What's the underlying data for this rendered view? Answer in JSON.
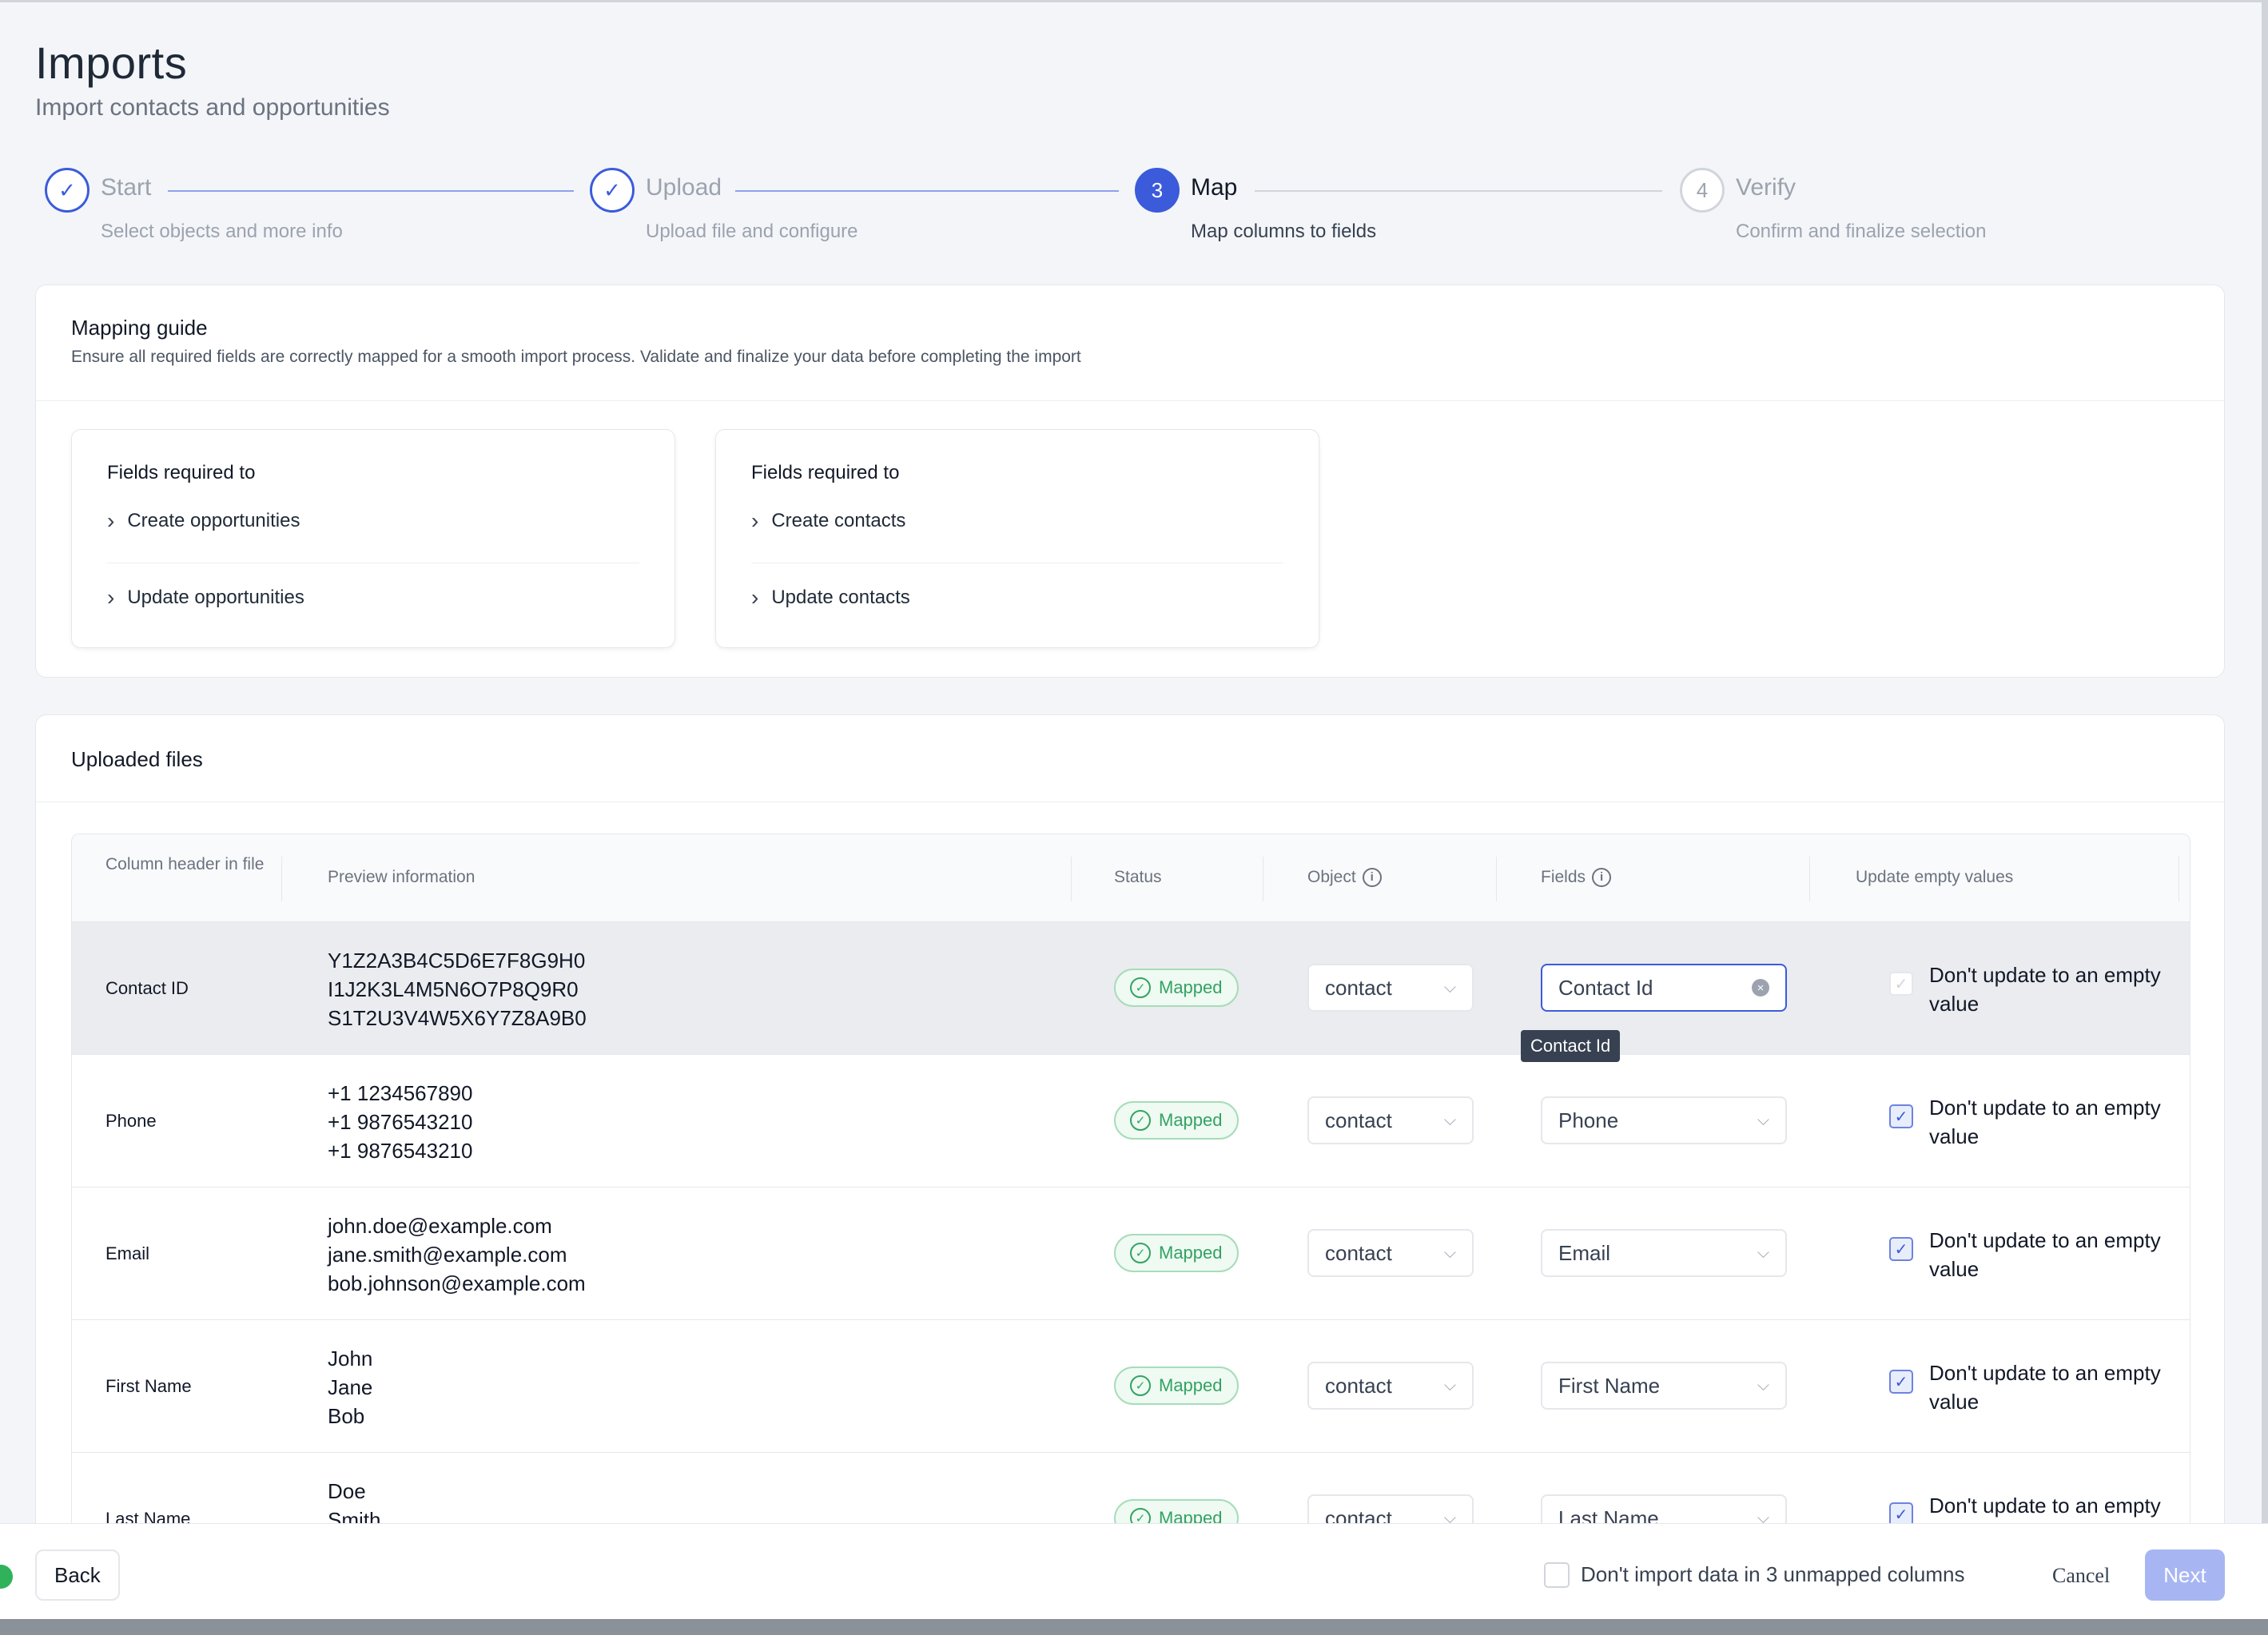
{
  "page": {
    "title": "Imports",
    "subtitle": "Import contacts and opportunities"
  },
  "steps": [
    {
      "number": "✓",
      "title": "Start",
      "desc": "Select objects and more info",
      "state": "done"
    },
    {
      "number": "✓",
      "title": "Upload",
      "desc": "Upload file and configure",
      "state": "done"
    },
    {
      "number": "3",
      "title": "Map",
      "desc": "Map columns to fields",
      "state": "active"
    },
    {
      "number": "4",
      "title": "Verify",
      "desc": "Confirm and finalize selection",
      "state": "todo"
    }
  ],
  "guide": {
    "title": "Mapping guide",
    "desc": "Ensure all required fields are correctly mapped for a smooth import process. Validate and finalize your data before completing the import",
    "boxes": [
      {
        "head": "Fields required to",
        "items": [
          "Create opportunities",
          "Update opportunities"
        ]
      },
      {
        "head": "Fields required to",
        "items": [
          "Create contacts",
          "Update contacts"
        ]
      }
    ]
  },
  "files": {
    "title": "Uploaded files",
    "columns": {
      "header": "Column header in file",
      "preview": "Preview information",
      "status": "Status",
      "object": "Object",
      "fields": "Fields",
      "update": "Update empty values"
    },
    "rows": [
      {
        "header": "Contact ID",
        "preview": [
          "Y1Z2A3B4C5D6E7F8G9H0",
          "I1J2K3L4M5N6O7P8Q9R0",
          "S1T2U3V4W5X6Y7Z8A9B0"
        ],
        "status": "Mapped",
        "object": "contact",
        "field": "Contact Id",
        "update": "Don't update to an empty value"
      },
      {
        "header": "Phone",
        "preview": [
          "+1 1234567890",
          "+1 9876543210",
          "+1 9876543210"
        ],
        "status": "Mapped",
        "object": "contact",
        "field": "Phone",
        "update": "Don't update to an empty value"
      },
      {
        "header": "Email",
        "preview": [
          "john.doe@example.com",
          "jane.smith@example.com",
          "bob.johnson@example.com"
        ],
        "status": "Mapped",
        "object": "contact",
        "field": "Email",
        "update": "Don't update to an empty value"
      },
      {
        "header": "First Name",
        "preview": [
          "John",
          "Jane",
          "Bob"
        ],
        "status": "Mapped",
        "object": "contact",
        "field": "First Name",
        "update": "Don't update to an empty value"
      },
      {
        "header": "Last Name",
        "preview": [
          "Doe",
          "Smith",
          ""
        ],
        "status": "Mapped",
        "object": "contact",
        "field": "Last Name",
        "update": "Don't update to an empty"
      }
    ],
    "tooltip": "Contact Id"
  },
  "footer": {
    "back": "Back",
    "unmapped": "Don't import data in 3 unmapped columns",
    "cancel": "Cancel",
    "next": "Next"
  },
  "colors": {
    "accent": "#3b5bdb",
    "mapped": "#34a263",
    "next_disabled": "#a7b6f2"
  }
}
